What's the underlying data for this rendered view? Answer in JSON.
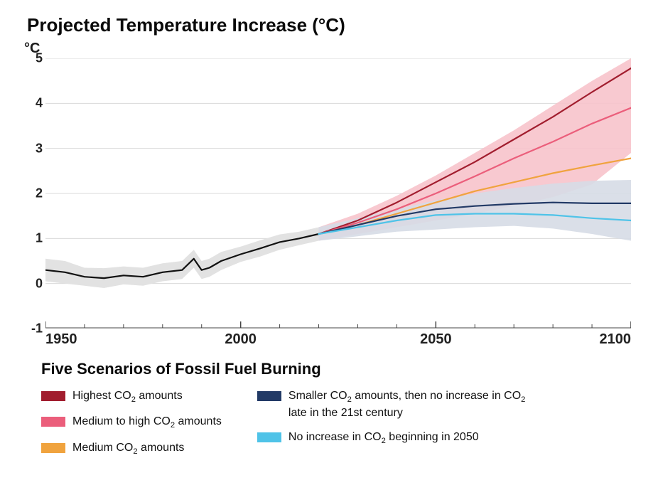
{
  "chart": {
    "type": "line",
    "title": "Projected Temperature Increase (°C)",
    "y_unit_label": "°C",
    "title_fontsize": 26,
    "label_fontsize": 18,
    "xlim": [
      1950,
      2100
    ],
    "ylim": [
      -1,
      5
    ],
    "x_ticks": [
      1950,
      2000,
      2050,
      2100
    ],
    "x_minor_ticks": [
      1960,
      1970,
      1980,
      1990,
      2010,
      2020,
      2030,
      2040,
      2060,
      2070,
      2080,
      2090
    ],
    "y_ticks": [
      -1,
      0,
      1,
      2,
      3,
      4,
      5
    ],
    "background_color": "#ffffff",
    "grid_color": "#d9d9d9",
    "grid_width": 1,
    "axis_color": "#444444",
    "line_width": 2.2,
    "historical": {
      "color": "#111111",
      "band_color": "#e2e2e2",
      "x": [
        1950,
        1955,
        1960,
        1965,
        1970,
        1975,
        1980,
        1985,
        1988,
        1990,
        1992,
        1995,
        2000,
        2005,
        2010,
        2015,
        2020
      ],
      "y": [
        0.3,
        0.25,
        0.15,
        0.12,
        0.18,
        0.15,
        0.25,
        0.3,
        0.55,
        0.3,
        0.35,
        0.5,
        0.65,
        0.78,
        0.92,
        1.0,
        1.1
      ],
      "y_low": [
        0.05,
        0.0,
        -0.05,
        -0.1,
        -0.02,
        -0.05,
        0.05,
        0.1,
        0.35,
        0.1,
        0.15,
        0.3,
        0.48,
        0.6,
        0.75,
        0.85,
        0.95
      ],
      "y_high": [
        0.55,
        0.5,
        0.35,
        0.34,
        0.38,
        0.35,
        0.45,
        0.5,
        0.75,
        0.5,
        0.55,
        0.7,
        0.82,
        0.96,
        1.09,
        1.15,
        1.25
      ]
    },
    "projection_x": [
      2020,
      2030,
      2040,
      2050,
      2060,
      2070,
      2080,
      2090,
      2100
    ],
    "red_band": {
      "color": "#f7c3cb",
      "upper": [
        1.25,
        1.55,
        1.95,
        2.4,
        2.9,
        3.4,
        3.95,
        4.5,
        5.0
      ],
      "lower": [
        0.95,
        1.1,
        1.25,
        1.4,
        1.55,
        1.72,
        1.92,
        2.2,
        2.9
      ]
    },
    "blue_band": {
      "color": "#d6dbe5",
      "upper": [
        1.25,
        1.45,
        1.65,
        1.85,
        2.0,
        2.12,
        2.22,
        2.28,
        2.3
      ],
      "lower": [
        0.95,
        1.05,
        1.15,
        1.2,
        1.25,
        1.28,
        1.22,
        1.1,
        0.95
      ]
    },
    "series": [
      {
        "id": "highest",
        "color": "#a11d2e",
        "y": [
          1.1,
          1.4,
          1.8,
          2.25,
          2.7,
          3.2,
          3.7,
          4.25,
          4.78
        ]
      },
      {
        "id": "med_high",
        "color": "#eb5e7b",
        "y": [
          1.1,
          1.35,
          1.65,
          2.0,
          2.38,
          2.78,
          3.15,
          3.55,
          3.9
        ]
      },
      {
        "id": "medium",
        "color": "#f0a33e",
        "y": [
          1.1,
          1.3,
          1.55,
          1.8,
          2.05,
          2.25,
          2.45,
          2.62,
          2.78
        ]
      },
      {
        "id": "smaller",
        "color": "#223a66",
        "y": [
          1.1,
          1.3,
          1.5,
          1.65,
          1.72,
          1.77,
          1.8,
          1.78,
          1.78
        ]
      },
      {
        "id": "no_incr",
        "color": "#4fc3e8",
        "y": [
          1.1,
          1.25,
          1.4,
          1.52,
          1.55,
          1.55,
          1.52,
          1.45,
          1.4
        ]
      }
    ]
  },
  "legend": {
    "title": "Five Scenarios of Fossil Fuel Burning",
    "left": [
      {
        "id": "highest",
        "color": "#a11d2e",
        "label_html": "Highest CO<sub>2</sub> amounts"
      },
      {
        "id": "med_high",
        "color": "#eb5e7b",
        "label_html": "Medium to high CO<sub>2</sub> amounts"
      },
      {
        "id": "medium",
        "color": "#f0a33e",
        "label_html": "Medium CO<sub>2</sub> amounts"
      }
    ],
    "right": [
      {
        "id": "smaller",
        "color": "#223a66",
        "label_html": "Smaller CO<sub>2</sub> amounts, then no increase in CO<sub>2</sub> late in the 21st century"
      },
      {
        "id": "no_incr",
        "color": "#4fc3e8",
        "label_html": "No increase in CO<sub>2</sub> beginning in 2050"
      }
    ]
  }
}
